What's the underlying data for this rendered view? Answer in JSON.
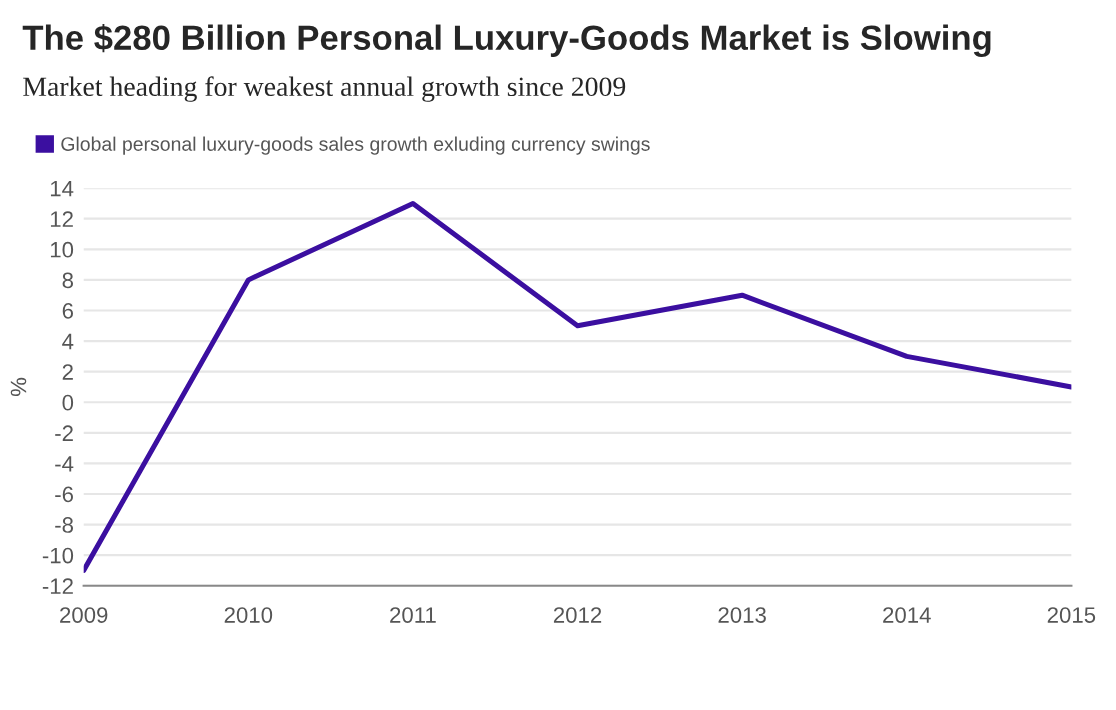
{
  "chart_data": {
    "type": "line",
    "title": "The $280 Billion Personal Luxury-Goods Market is Slowing",
    "subtitle": "Market heading for weakest annual growth since 2009",
    "ylabel": "%",
    "x": [
      2009,
      2010,
      2011,
      2012,
      2013,
      2014,
      2015
    ],
    "series": [
      {
        "name": "Global personal luxury-goods sales growth exluding currency swings",
        "color": "#3b0fa0",
        "values": [
          -11,
          8,
          13,
          5,
          7,
          3,
          1
        ]
      }
    ],
    "xlim": [
      2009,
      2015
    ],
    "xticks": [
      2009,
      2010,
      2011,
      2012,
      2013,
      2014,
      2015
    ],
    "ylim": [
      -12,
      14
    ],
    "yticks": [
      -12,
      -10,
      -8,
      -6,
      -4,
      -2,
      0,
      2,
      4,
      6,
      8,
      10,
      12,
      14
    ],
    "grid": "y",
    "legend": "top left",
    "marker": "none",
    "line_style": "solid"
  }
}
